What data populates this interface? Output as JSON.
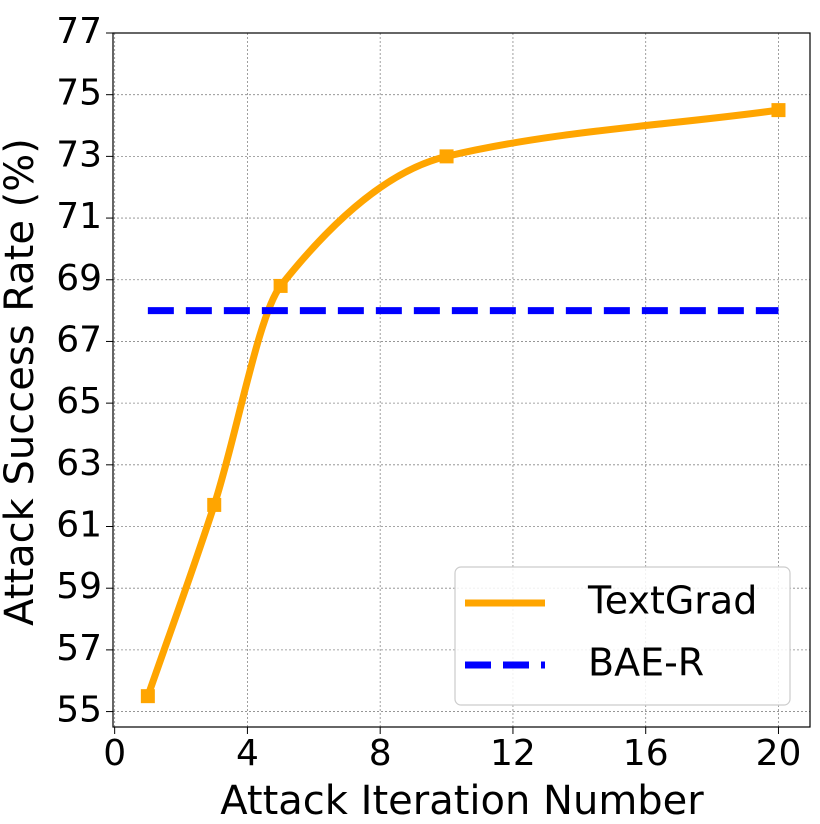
{
  "chart_data": {
    "type": "line",
    "x_label": "Attack Iteration Number",
    "y_label": "Attack Success Rate (%)",
    "xlim": [
      -0.05,
      20.95
    ],
    "xticks": [
      0,
      4,
      8,
      12,
      16,
      20
    ],
    "ylim": [
      54.5,
      77
    ],
    "yticks": [
      55,
      57,
      59,
      61,
      63,
      65,
      67,
      69,
      71,
      73,
      75,
      77
    ],
    "grid": true,
    "legend": "lower right",
    "smooth": true,
    "series": [
      {
        "name": "TextGrad",
        "color": "#ffa500",
        "line_style": "solid",
        "marker": "square",
        "x": [
          1,
          3,
          5,
          10,
          20
        ],
        "values": [
          55.5,
          61.7,
          68.8,
          73.0,
          74.5
        ]
      },
      {
        "name": "BAE-R",
        "color": "#0000ff",
        "line_style": "dashed",
        "x": [
          1,
          20
        ],
        "values": [
          68,
          68
        ]
      }
    ]
  }
}
